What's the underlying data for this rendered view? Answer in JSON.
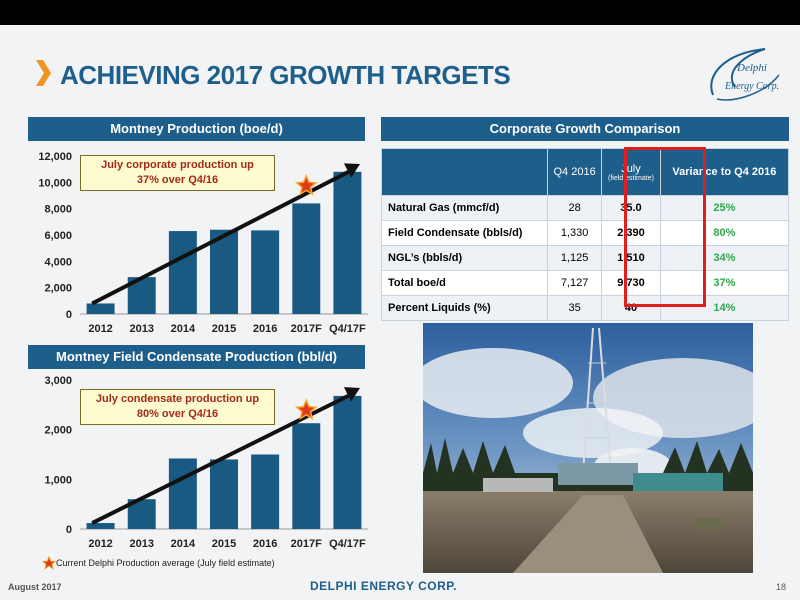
{
  "slide": {
    "title": "ACHIEVING 2017 GROWTH TARGETS",
    "logo_text_1": "Delphi",
    "logo_text_2": "Energy Corp.",
    "footer_date": "August 2017",
    "footer_company": "DELPHI ENERGY CORP.",
    "page_number": "18",
    "colors": {
      "accent_blue": "#1d5e8a",
      "bar_blue": "#1a5a82",
      "orange_chevron": "#f39322",
      "green": "#2ea84b",
      "red": "#e01e1e"
    }
  },
  "panels": {
    "production_title": "Montney Production (boe/d)",
    "condensate_title": "Montney Field Condensate Production (bbl/d)",
    "comparison_title": "Corporate Growth Comparison"
  },
  "callouts": {
    "production": [
      "July corporate production up",
      "37% over Q4/16"
    ],
    "condensate": [
      "July condensate production up",
      "80% over Q4/16"
    ]
  },
  "legend_note": "Current Delphi Production average (July field estimate)",
  "chart_data": [
    {
      "type": "bar",
      "title": "Montney Production (boe/d)",
      "categories": [
        "2012",
        "2013",
        "2014",
        "2015",
        "2016",
        "2017F",
        "Q4/17F"
      ],
      "values": [
        800,
        2800,
        6300,
        6400,
        6350,
        8400,
        10800
      ],
      "ylim": [
        0,
        12000
      ],
      "yticks": [
        "0",
        "2,000",
        "4,000",
        "6,000",
        "8,000",
        "10,000",
        "12,000"
      ],
      "ytick_values": [
        0,
        2000,
        4000,
        6000,
        8000,
        10000,
        12000
      ],
      "marker": {
        "category": "2017F",
        "value": 9730
      },
      "grid": false
    },
    {
      "type": "bar",
      "title": "Montney Field Condensate Production (bbl/d)",
      "categories": [
        "2012",
        "2013",
        "2014",
        "2015",
        "2016",
        "2017F",
        "Q4/17F"
      ],
      "values": [
        120,
        600,
        1420,
        1400,
        1500,
        2130,
        2680
      ],
      "ylim": [
        0,
        3000
      ],
      "yticks": [
        "0",
        "1,000",
        "2,000",
        "3,000"
      ],
      "ytick_values": [
        0,
        1000,
        2000,
        3000
      ],
      "marker": {
        "category": "2017F",
        "value": 2390
      },
      "grid": false
    }
  ],
  "table": {
    "headers": [
      "",
      "Q4 2016",
      "July",
      "Variance to Q4 2016"
    ],
    "july_subtitle": "(field estimate)",
    "rows": [
      {
        "label": "Natural Gas (mmcf/d)",
        "q4": "28",
        "july": "35.0",
        "variance": "25%"
      },
      {
        "label": "Field Condensate (bbls/d)",
        "q4": "1,330",
        "july": "2,390",
        "variance": "80%"
      },
      {
        "label": "NGL’s (bbls/d)",
        "q4": "1,125",
        "july": "1,510",
        "variance": "34%"
      },
      {
        "label": "Total boe/d",
        "q4": "7,127",
        "july": "9,730",
        "variance": "37%"
      },
      {
        "label": "Percent Liquids (%)",
        "q4": "35",
        "july": "40",
        "variance": "14%"
      }
    ]
  },
  "photo": {
    "icon": "drilling-rig-photo"
  }
}
